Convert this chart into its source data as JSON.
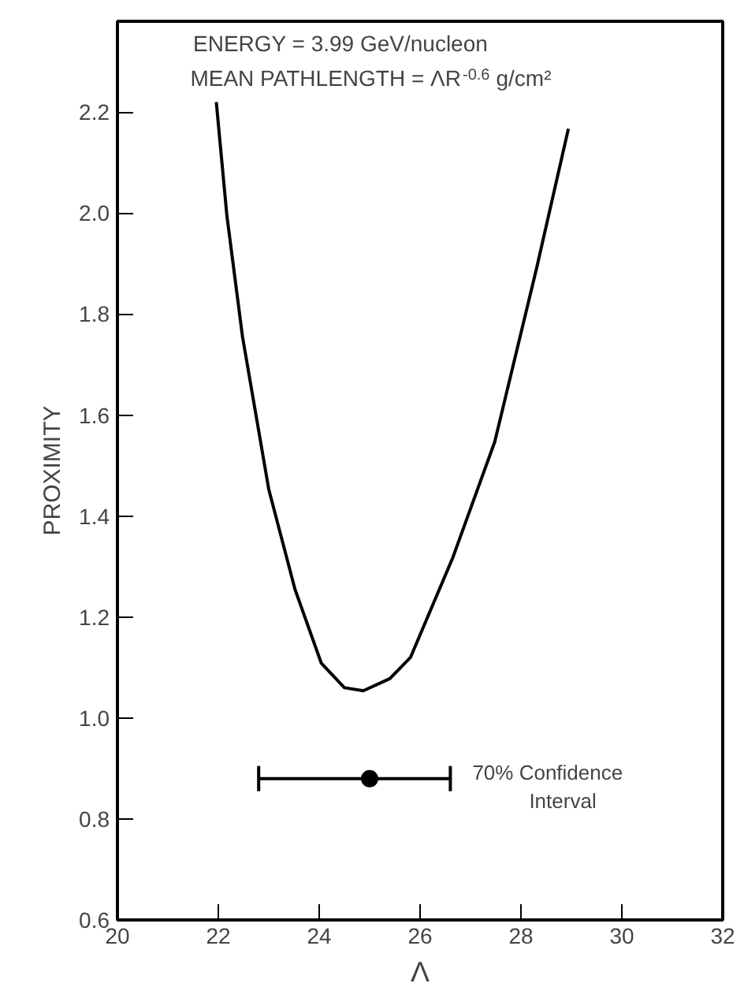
{
  "chart_data": {
    "type": "line",
    "xlabel": "Λ",
    "ylabel": "PROXIMITY",
    "annotations": [
      "ENERGY = 3.99 GeV/nucleon",
      "MEAN PATHLENGTH = ΛR$^{-0.6}$ g/cm²",
      {
        "text": "70% Confidence Interval",
        "x": 26.6,
        "y": 0.88
      }
    ],
    "series": [
      {
        "color": "#000000",
        "marker": "none",
        "x": [
          21.96,
          22.17,
          22.48,
          23.0,
          23.52,
          24.04,
          24.5,
          24.875,
          25.4,
          25.81,
          26.65,
          27.48,
          28.31,
          28.94
        ],
        "values": [
          2.22,
          1.995,
          1.755,
          1.453,
          1.255,
          1.109,
          1.06,
          1.054,
          1.078,
          1.12,
          1.318,
          1.547,
          1.891,
          2.167
        ]
      },
      {
        "type": "scatter",
        "color": "#000000",
        "marker": "circle",
        "x": [
          25.0
        ],
        "values": [
          0.88
        ],
        "xerrors": [
          [
            22.8,
            26.6
          ]
        ]
      }
    ],
    "xlim": [
      20,
      32
    ],
    "ylim": [
      0.6,
      2.38
    ],
    "xticks": [
      20,
      22,
      24,
      26,
      28,
      30,
      32
    ],
    "yticks": [
      0.6,
      0.8,
      {
        "value": 1.0,
        "label": "1.0"
      },
      1.2,
      1.4,
      1.6,
      1.8,
      {
        "value": 2.0,
        "label": "2.0"
      },
      2.2
    ],
    "grid": false
  }
}
